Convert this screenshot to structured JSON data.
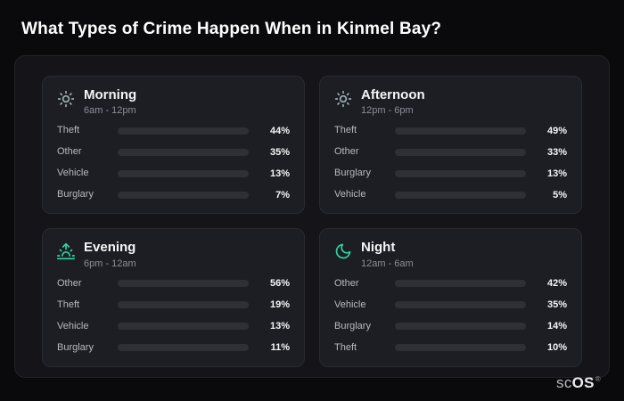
{
  "page": {
    "title": "What Types of Crime Happen When in Kinmel Bay?",
    "brand": {
      "prefix": "sc",
      "suffix": "OS",
      "registered": "®"
    }
  },
  "colors": {
    "background": "#0a0a0c",
    "panel": "#151519",
    "card": "#1d1e23",
    "track": "#2e3036",
    "theft": "#a962e8",
    "other": "#6b7a8f",
    "vehicle": "#3b82f6",
    "burglary": "#e8802e",
    "accent_teal_icon": "#2fd4a7"
  },
  "chart_data": [
    {
      "type": "bar",
      "title": "Morning",
      "subtitle": "6am - 12pm",
      "icon": "sun-icon",
      "unit": "%",
      "xlim": [
        0,
        100
      ],
      "categories": [
        "Theft",
        "Other",
        "Vehicle",
        "Burglary"
      ],
      "values": [
        44,
        35,
        13,
        7
      ],
      "value_labels": [
        "44%",
        "35%",
        "13%",
        "7%"
      ],
      "bar_colors": [
        "#a962e8",
        "#6b7a8f",
        "#3b82f6",
        "#e8802e"
      ]
    },
    {
      "type": "bar",
      "title": "Afternoon",
      "subtitle": "12pm - 6pm",
      "icon": "sun-icon",
      "unit": "%",
      "xlim": [
        0,
        100
      ],
      "categories": [
        "Theft",
        "Other",
        "Burglary",
        "Vehicle"
      ],
      "values": [
        49,
        33,
        13,
        5
      ],
      "value_labels": [
        "49%",
        "33%",
        "13%",
        "5%"
      ],
      "bar_colors": [
        "#a962e8",
        "#6b7a8f",
        "#e8802e",
        "#3b82f6"
      ]
    },
    {
      "type": "bar",
      "title": "Evening",
      "subtitle": "6pm - 12am",
      "icon": "sunrise-icon",
      "unit": "%",
      "xlim": [
        0,
        100
      ],
      "categories": [
        "Other",
        "Theft",
        "Vehicle",
        "Burglary"
      ],
      "values": [
        56,
        19,
        13,
        11
      ],
      "value_labels": [
        "56%",
        "19%",
        "13%",
        "11%"
      ],
      "bar_colors": [
        "#6b7a8f",
        "#a962e8",
        "#3b82f6",
        "#e8802e"
      ]
    },
    {
      "type": "bar",
      "title": "Night",
      "subtitle": "12am - 6am",
      "icon": "moon-icon",
      "unit": "%",
      "xlim": [
        0,
        100
      ],
      "categories": [
        "Other",
        "Vehicle",
        "Burglary",
        "Theft"
      ],
      "values": [
        42,
        35,
        14,
        10
      ],
      "value_labels": [
        "42%",
        "35%",
        "14%",
        "10%"
      ],
      "bar_colors": [
        "#6b7a8f",
        "#3b82f6",
        "#e8802e",
        "#a962e8"
      ]
    }
  ]
}
